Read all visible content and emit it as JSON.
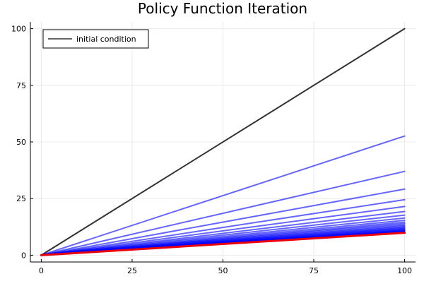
{
  "chart_data": {
    "type": "line",
    "title": "Policy Function Iteration",
    "xlabel": "",
    "ylabel": "",
    "xlim": [
      -3,
      103
    ],
    "ylim": [
      -3,
      103
    ],
    "x": [
      0,
      100
    ],
    "xticks": [
      0,
      25,
      50,
      75,
      100
    ],
    "yticks": [
      0,
      25,
      50,
      75,
      100
    ],
    "grid": true,
    "legend": {
      "entries": [
        "initial condition"
      ],
      "placement": "top-left"
    },
    "colors": {
      "initial": "#333333",
      "iterations": "#0000ff",
      "final": "#e8000b",
      "grid": "#e6e6e6",
      "axis": "#000000"
    },
    "series": [
      {
        "name": "initial condition",
        "role": "initial",
        "values": [
          0,
          100
        ]
      },
      {
        "role": "iteration",
        "values": [
          0,
          52.6
        ]
      },
      {
        "role": "iteration",
        "values": [
          0,
          37.0
        ]
      },
      {
        "role": "iteration",
        "values": [
          0,
          29.2
        ]
      },
      {
        "role": "iteration",
        "values": [
          0,
          24.5
        ]
      },
      {
        "role": "iteration",
        "values": [
          0,
          21.5
        ]
      },
      {
        "role": "iteration",
        "values": [
          0,
          19.3
        ]
      },
      {
        "role": "iteration",
        "values": [
          0,
          17.7
        ]
      },
      {
        "role": "iteration",
        "values": [
          0,
          16.4
        ]
      },
      {
        "role": "iteration",
        "values": [
          0,
          15.4
        ]
      },
      {
        "role": "iteration",
        "values": [
          0,
          14.6
        ]
      },
      {
        "role": "iteration",
        "values": [
          0,
          14.0
        ]
      },
      {
        "role": "iteration",
        "values": [
          0,
          13.4
        ]
      },
      {
        "role": "iteration",
        "values": [
          0,
          12.9
        ]
      },
      {
        "role": "iteration",
        "values": [
          0,
          12.5
        ]
      },
      {
        "role": "iteration",
        "values": [
          0,
          12.1
        ]
      },
      {
        "role": "iteration",
        "values": [
          0,
          11.8
        ]
      },
      {
        "role": "iteration",
        "values": [
          0,
          11.5
        ]
      },
      {
        "role": "iteration",
        "values": [
          0,
          11.2
        ]
      },
      {
        "role": "iteration",
        "values": [
          0,
          11.0
        ]
      },
      {
        "role": "iteration",
        "values": [
          0,
          10.8
        ]
      },
      {
        "role": "iteration",
        "values": [
          0,
          10.6
        ]
      },
      {
        "role": "iteration",
        "values": [
          0,
          10.4
        ]
      },
      {
        "role": "iteration",
        "values": [
          0,
          10.3
        ]
      },
      {
        "role": "iteration",
        "values": [
          0,
          10.15
        ]
      },
      {
        "role": "final",
        "values": [
          0,
          9.9
        ]
      }
    ]
  }
}
